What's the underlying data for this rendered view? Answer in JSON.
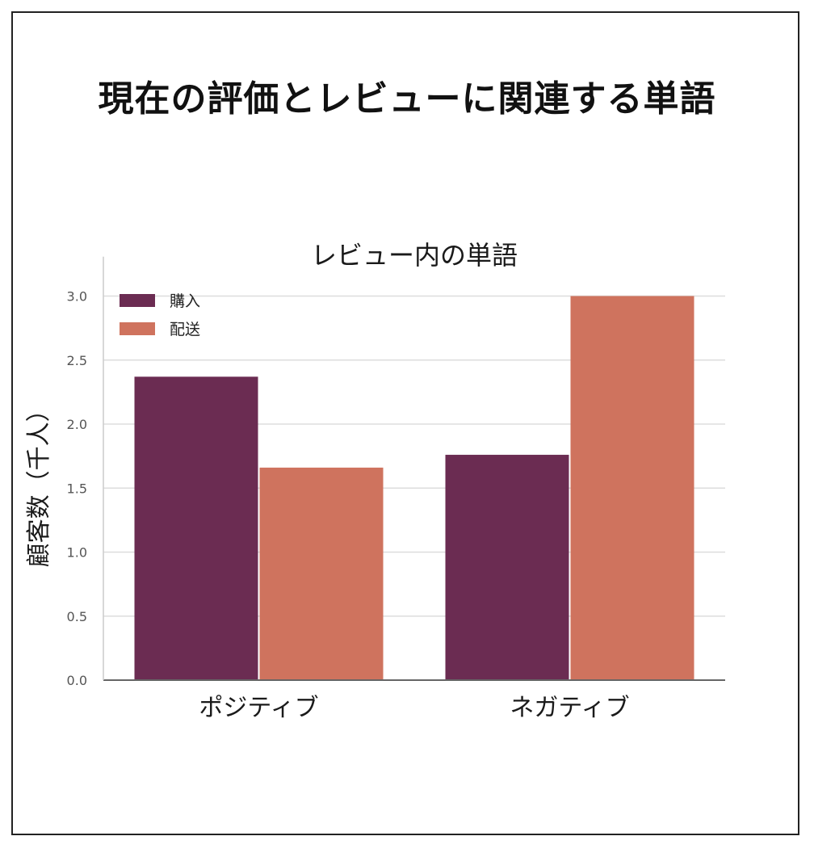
{
  "header": {
    "title": "現在の評価とレビューに関連する単語"
  },
  "chart_data": {
    "type": "bar",
    "title": "レビュー内の単語",
    "xlabel": "",
    "ylabel": "顧客数（千人）",
    "categories": [
      "ポジティブ",
      "ネガティブ"
    ],
    "series": [
      {
        "name": "購入",
        "values": [
          2.37,
          1.76
        ],
        "color": "#6b2c52"
      },
      {
        "name": "配送",
        "values": [
          1.66,
          3.0
        ],
        "color": "#cf735e"
      }
    ],
    "ylim": [
      0,
      3.15
    ],
    "yticks": [
      "0.0",
      "0.5",
      "1.0",
      "1.5",
      "2.0",
      "2.5",
      "3.0"
    ],
    "grid": true,
    "legend_position": "top-left"
  }
}
